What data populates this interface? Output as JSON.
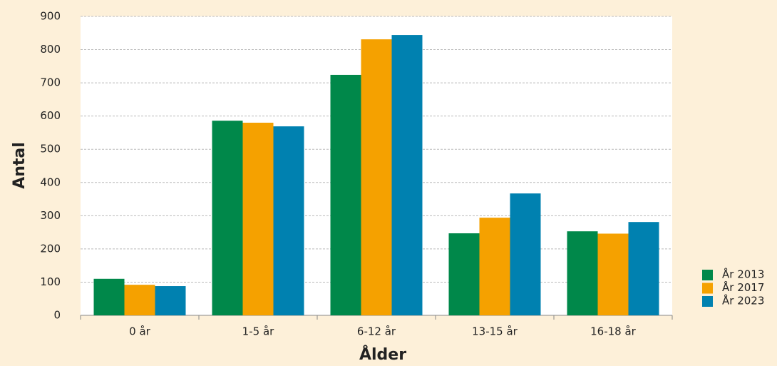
{
  "chart_data": {
    "type": "bar",
    "x_label": "Ålder",
    "y_label": "Antal",
    "categories": [
      "0 år",
      "1-5 år",
      "6-12 år",
      "13-15 år",
      "16-18 år"
    ],
    "series": [
      {
        "name": "År 2013",
        "color": "#00884a",
        "values": [
          110,
          586,
          724,
          247,
          253
        ]
      },
      {
        "name": "År 2017",
        "color": "#f5a100",
        "values": [
          92,
          580,
          831,
          294,
          246
        ]
      },
      {
        "name": "År 2023",
        "color": "#0081b0",
        "values": [
          88,
          569,
          844,
          367,
          281
        ]
      }
    ],
    "ylim": [
      0,
      900
    ],
    "yticks": [
      0,
      100,
      200,
      300,
      400,
      500,
      600,
      700,
      800,
      900
    ],
    "grid": true,
    "legend": "bottom-right"
  }
}
